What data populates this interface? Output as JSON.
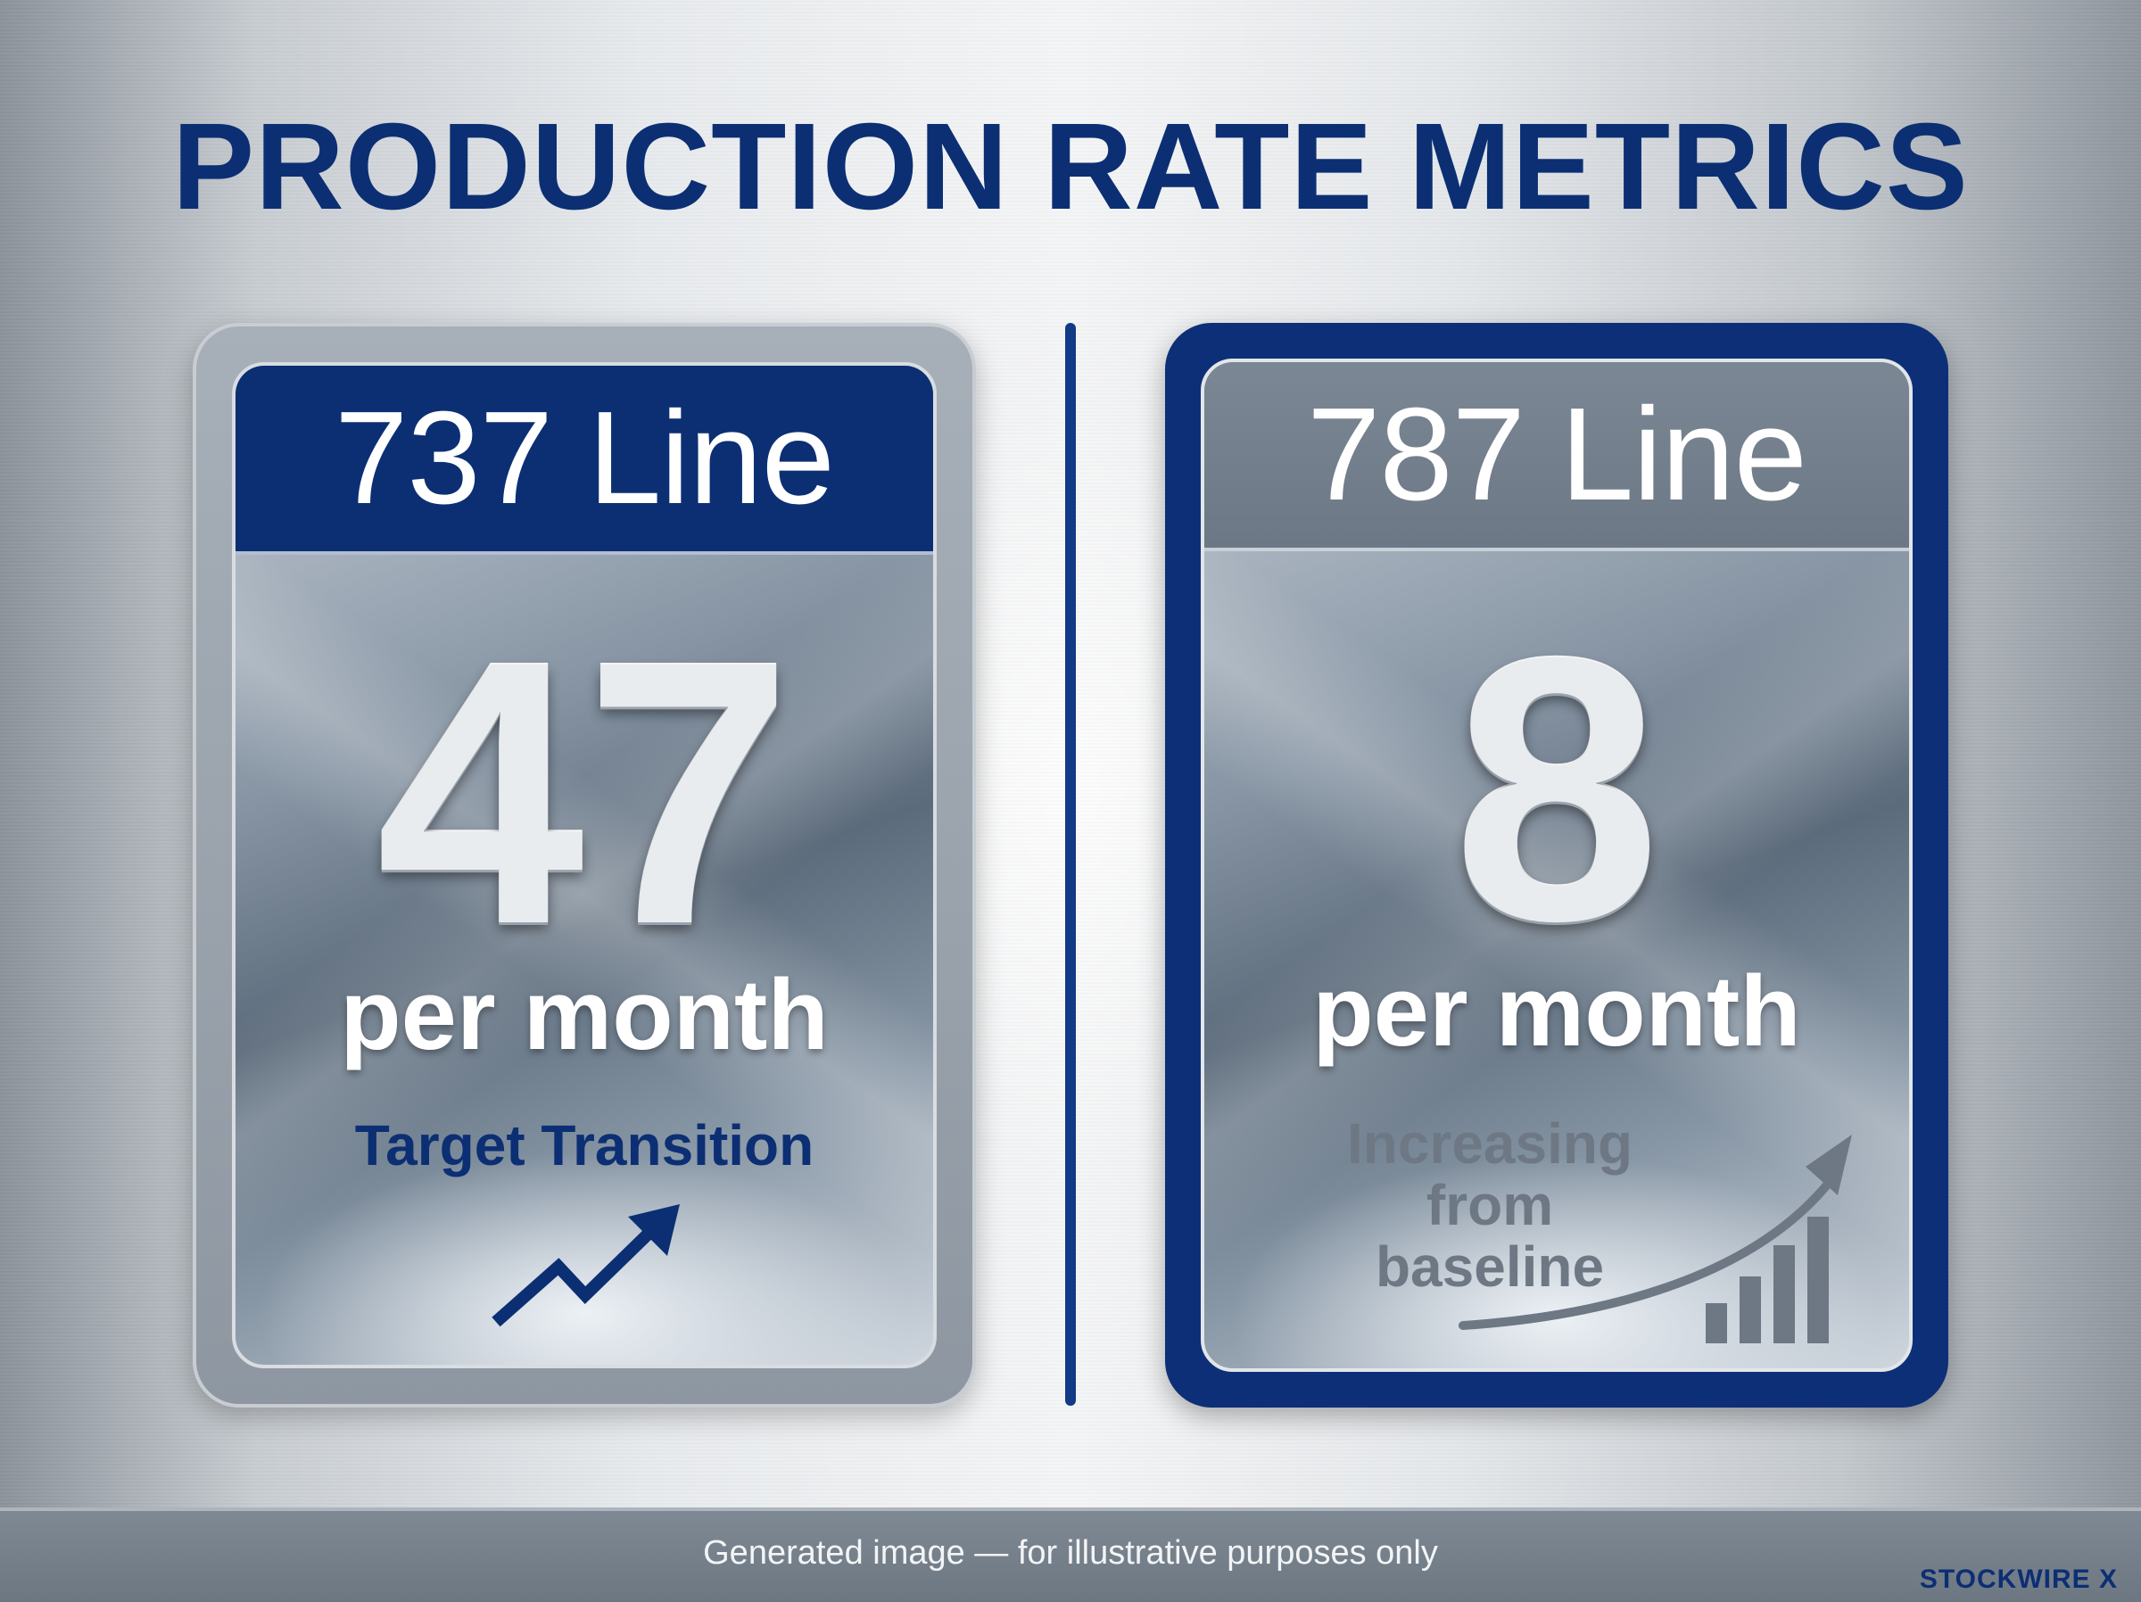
{
  "title": "PRODUCTION RATE METRICS",
  "cards": [
    {
      "line": "737 Line",
      "value": "47",
      "unit": "per month",
      "note": "Target Transition",
      "icon": "zigzag-up-arrow-icon"
    },
    {
      "line": "787 Line",
      "value": "8",
      "unit": "per month",
      "note_line1": "Increasing from",
      "note_line2": "baseline",
      "icon": "growth-bars-arrow-icon"
    }
  ],
  "footer": {
    "disclaimer": "Generated image — for illustrative purposes only",
    "brand": "STOCKWIRE X"
  },
  "colors": {
    "navy": "#0c2f73",
    "steel": "#6e7884",
    "white": "#ffffff"
  }
}
